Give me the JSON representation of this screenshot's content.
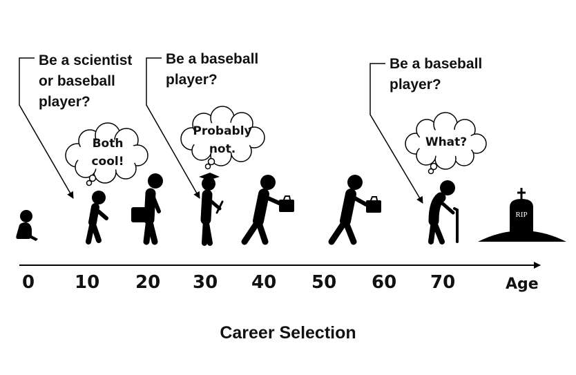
{
  "questions": {
    "age10": [
      "Be a scientist",
      "or baseball",
      "player?"
    ],
    "age30": [
      "Be a baseball",
      "player?"
    ],
    "age70": [
      "Be a baseball",
      "player?"
    ]
  },
  "thoughts": {
    "age10": [
      "Both",
      "cool!"
    ],
    "age30": [
      "Probably",
      "not."
    ],
    "age70": [
      "What?"
    ]
  },
  "axis": {
    "ticks": [
      "0",
      "10",
      "20",
      "30",
      "40",
      "50",
      "60",
      "70"
    ],
    "label": "Age"
  },
  "tombstone": {
    "text": "RIP"
  },
  "caption": "Career Selection"
}
